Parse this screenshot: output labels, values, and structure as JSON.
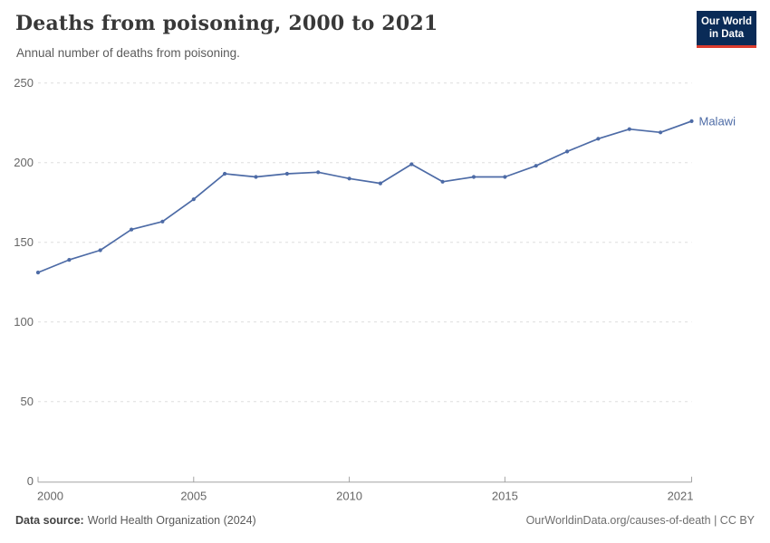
{
  "header": {
    "title": "Deaths from poisoning, 2000 to 2021",
    "subtitle": "Annual number of deaths from poisoning.",
    "logo": {
      "line1": "Our World",
      "line2": "in Data",
      "bg_color": "#0a2b57",
      "bar_color": "#dc3c2e"
    }
  },
  "chart_data": {
    "type": "line",
    "title": "Deaths from poisoning, 2000 to 2021",
    "subtitle": "Annual number of deaths from poisoning.",
    "x": [
      2000,
      2001,
      2002,
      2003,
      2004,
      2005,
      2006,
      2007,
      2008,
      2009,
      2010,
      2011,
      2012,
      2013,
      2014,
      2015,
      2016,
      2017,
      2018,
      2019,
      2020,
      2021
    ],
    "series": [
      {
        "name": "Malawi",
        "color": "#4d6ba6",
        "values": [
          131,
          139,
          145,
          158,
          163,
          177,
          193,
          191,
          193,
          194,
          190,
          187,
          199,
          188,
          191,
          191,
          198,
          207,
          215,
          221,
          219,
          226
        ]
      }
    ],
    "xlabel": "",
    "ylabel": "",
    "ylim": [
      0,
      250
    ],
    "yticks": [
      0,
      50,
      100,
      150,
      200,
      250
    ],
    "xticks": [
      2000,
      2005,
      2010,
      2015,
      2021
    ],
    "grid": true,
    "legend_position": "end-of-line-label",
    "colors": {
      "gridline": "#dedede",
      "axis_line": "#a3a3a3",
      "tick_label": "#666666"
    }
  },
  "footer": {
    "source_label": "Data source:",
    "source_text": "World Health Organization (2024)",
    "license_text": "OurWorldinData.org/causes-of-death | CC BY"
  }
}
